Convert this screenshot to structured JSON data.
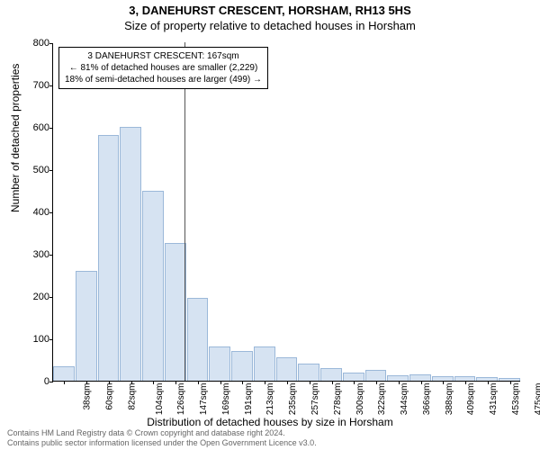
{
  "header": {
    "line1": "3, DANEHURST CRESCENT, HORSHAM, RH13 5HS",
    "line2": "Size of property relative to detached houses in Horsham"
  },
  "chart": {
    "type": "histogram",
    "ylabel": "Number of detached properties",
    "xlabel": "Distribution of detached houses by size in Horsham",
    "ylim": [
      0,
      800
    ],
    "ytick_step": 100,
    "background_color": "#ffffff",
    "bar_fill": "#d6e3f2",
    "bar_stroke": "#9bb8d9",
    "xticks": [
      "38sqm",
      "60sqm",
      "82sqm",
      "104sqm",
      "126sqm",
      "147sqm",
      "169sqm",
      "191sqm",
      "213sqm",
      "235sqm",
      "257sqm",
      "278sqm",
      "300sqm",
      "322sqm",
      "344sqm",
      "366sqm",
      "388sqm",
      "409sqm",
      "431sqm",
      "453sqm",
      "475sqm"
    ],
    "bar_values": [
      35,
      260,
      580,
      600,
      450,
      325,
      195,
      80,
      70,
      80,
      55,
      40,
      30,
      20,
      25,
      12,
      15,
      10,
      10,
      8,
      6
    ],
    "marker_line": {
      "x_index": 5.9,
      "color": "#555555"
    },
    "info_box": {
      "line1": "3 DANEHURST CRESCENT: 167sqm",
      "line2": "← 81% of detached houses are smaller (2,229)",
      "line3": "18% of semi-detached houses are larger (499) →"
    }
  },
  "footer": {
    "line1": "Contains HM Land Registry data © Crown copyright and database right 2024.",
    "line2": "Contains public sector information licensed under the Open Government Licence v3.0."
  },
  "styles": {
    "title_fontsize": 13,
    "tick_fontsize": 11,
    "xtick_fontsize": 10,
    "label_fontsize": 12,
    "footer_fontsize": 9,
    "footer_color": "#666666",
    "text_color": "#000000"
  }
}
